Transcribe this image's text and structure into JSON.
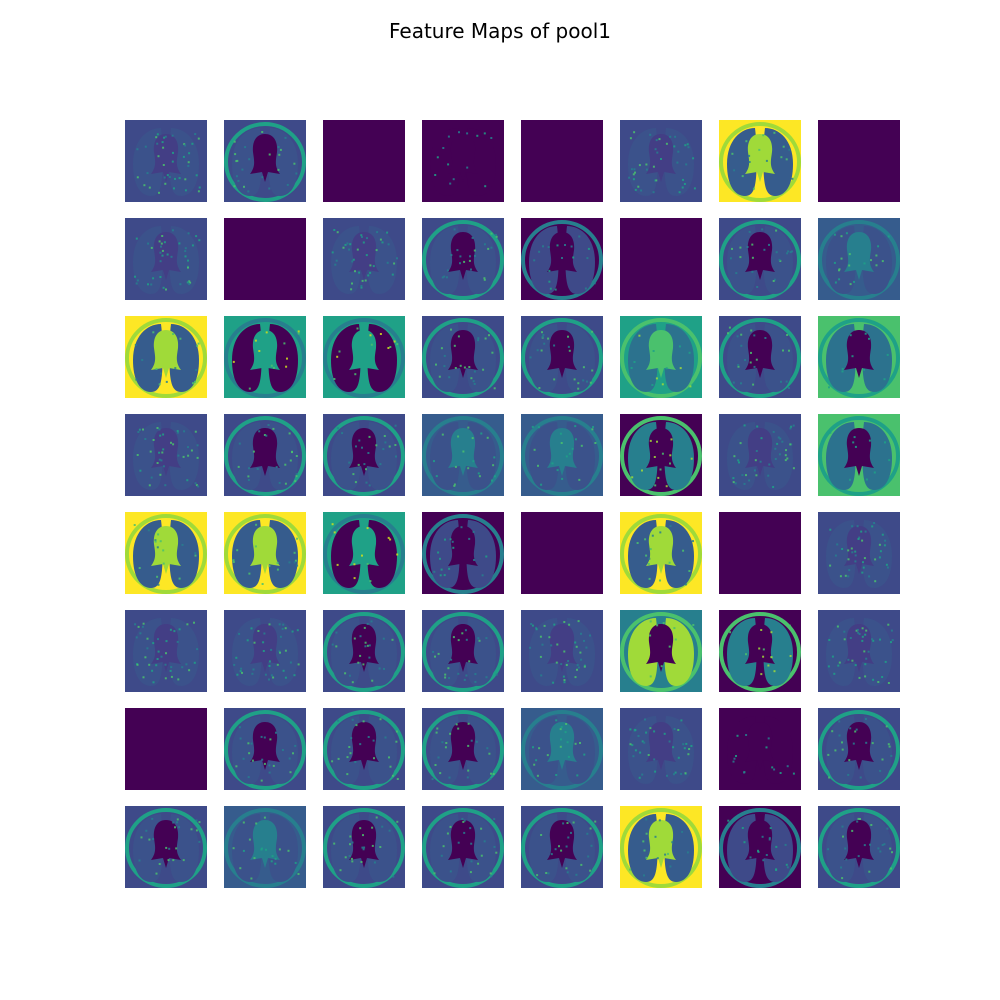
{
  "figure": {
    "title": "Feature Maps of pool1"
  },
  "grid": {
    "rows": 8,
    "cols": 8
  },
  "colormap": "viridis",
  "maps": [
    [
      "texture",
      "edge",
      "blank",
      "sparse",
      "blank",
      "texture",
      "bright",
      "blank"
    ],
    [
      "texture",
      "blank",
      "texture",
      "edge",
      "edgeDark",
      "blank",
      "edge",
      "teal"
    ],
    [
      "bright",
      "tealDark",
      "tealDark",
      "edge",
      "edge",
      "greenRing",
      "edge",
      "green"
    ],
    [
      "texture",
      "edge",
      "edge",
      "teal",
      "teal",
      "greenDark",
      "texture",
      "green"
    ],
    [
      "bright",
      "bright",
      "tealDark",
      "edgeDark",
      "blank",
      "bright",
      "blank",
      "texture"
    ],
    [
      "texture",
      "texture",
      "edge",
      "edge",
      "texture",
      "brightLung",
      "greenDark",
      "texture"
    ],
    [
      "blank",
      "edge",
      "edge",
      "edge",
      "teal",
      "texture",
      "sparse",
      "edge"
    ],
    [
      "edge",
      "teal",
      "edge",
      "edge",
      "edge",
      "bright",
      "edgeDark",
      "edge"
    ]
  ]
}
